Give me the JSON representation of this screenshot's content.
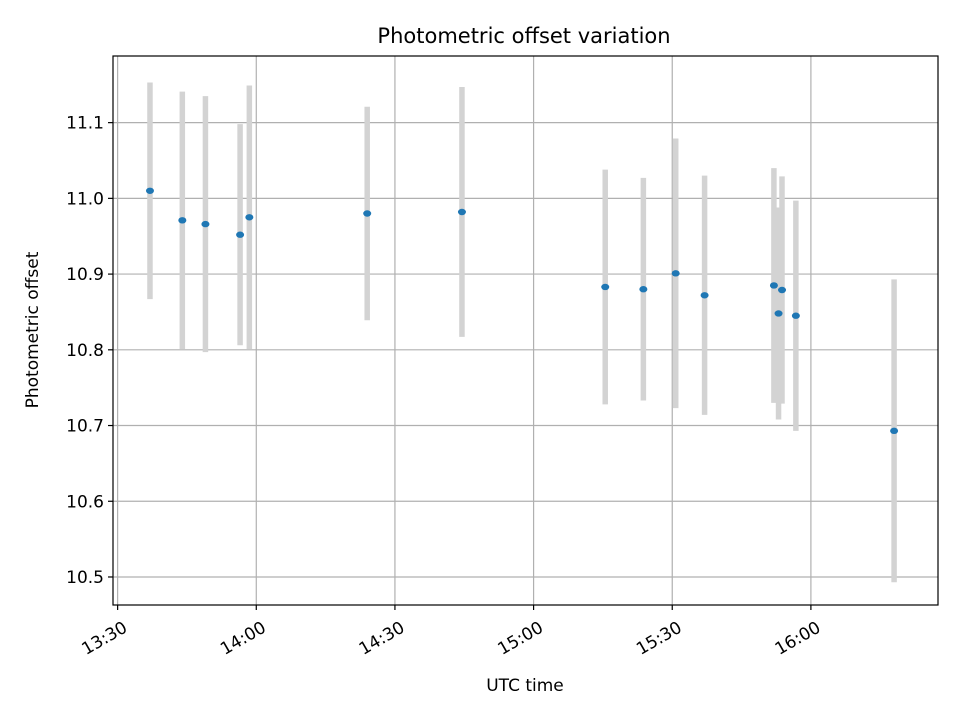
{
  "chart_data": {
    "type": "scatter",
    "title": "Photometric offset variation",
    "xlabel": "UTC time",
    "ylabel": "Photometric offset",
    "x_ticks": [
      "13:30",
      "14:00",
      "14:30",
      "15:00",
      "15:30",
      "16:00"
    ],
    "y_ticks": [
      "10.5",
      "10.6",
      "10.7",
      "10.8",
      "10.9",
      "11.0",
      "11.1"
    ],
    "xlim": [
      "13:29:00",
      "16:27:30"
    ],
    "ylim": [
      10.463,
      11.188
    ],
    "grid": true,
    "errorbar_color": "#d3d3d3",
    "marker_color": "#1f77b4",
    "points": [
      {
        "t": "13:37:00",
        "y": 11.01,
        "err": 0.143
      },
      {
        "t": "13:44:00",
        "y": 10.971,
        "err": 0.17
      },
      {
        "t": "13:49:00",
        "y": 10.966,
        "err": 0.169
      },
      {
        "t": "13:56:30",
        "y": 10.952,
        "err": 0.146
      },
      {
        "t": "13:58:30",
        "y": 10.975,
        "err": 0.174
      },
      {
        "t": "14:24:00",
        "y": 10.98,
        "err": 0.141
      },
      {
        "t": "14:44:30",
        "y": 10.982,
        "err": 0.165
      },
      {
        "t": "15:15:30",
        "y": 10.883,
        "err": 0.155
      },
      {
        "t": "15:23:45",
        "y": 10.88,
        "err": 0.147
      },
      {
        "t": "15:30:45",
        "y": 10.901,
        "err": 0.178
      },
      {
        "t": "15:37:00",
        "y": 10.872,
        "err": 0.158
      },
      {
        "t": "15:52:00",
        "y": 10.885,
        "err": 0.155
      },
      {
        "t": "15:53:00",
        "y": 10.848,
        "err": 0.14
      },
      {
        "t": "15:53:45",
        "y": 10.879,
        "err": 0.15
      },
      {
        "t": "15:56:45",
        "y": 10.845,
        "err": 0.152
      },
      {
        "t": "16:18:00",
        "y": 10.693,
        "err": 0.2
      }
    ]
  }
}
